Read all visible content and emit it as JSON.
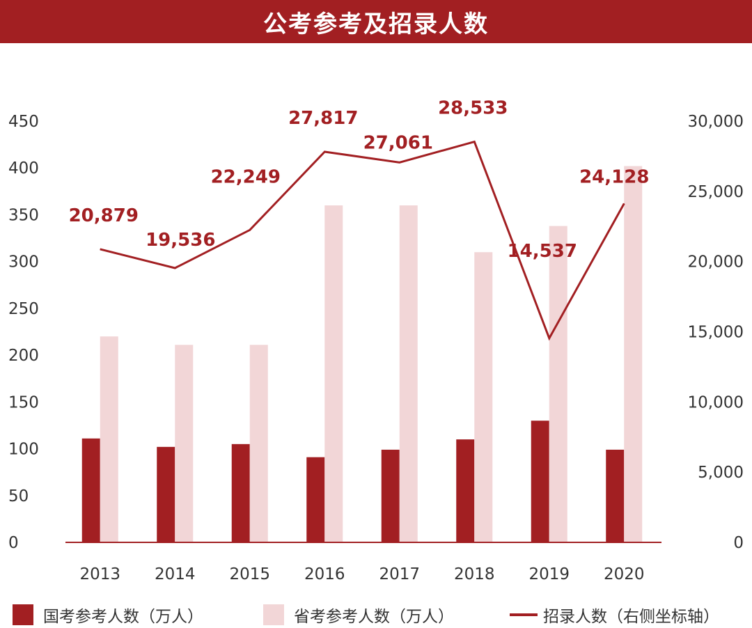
{
  "title": "公考参考及招录人数",
  "colors": {
    "primary": "#a21f22",
    "secondary": "#f2d6d7",
    "axis_text": "#333333"
  },
  "legend": {
    "national_label": "国考参考人数（万人）",
    "provincial_label": "省考参考人数（万人）",
    "recruit_label": "招录人数（右侧坐标轴）"
  },
  "chart_data": {
    "type": "bar",
    "categories": [
      "2013",
      "2014",
      "2015",
      "2016",
      "2017",
      "2018",
      "2019",
      "2020"
    ],
    "series": [
      {
        "name": "国考参考人数（万人）",
        "type": "bar",
        "axis": "left",
        "color": "#a21f22",
        "values": [
          111,
          102,
          105,
          91,
          99,
          110,
          130,
          99
        ]
      },
      {
        "name": "省考参考人数（万人）",
        "type": "bar",
        "axis": "left",
        "color": "#f2d6d7",
        "values": [
          220,
          211,
          211,
          360,
          360,
          310,
          338,
          402
        ]
      },
      {
        "name": "招录人数（右侧坐标轴）",
        "type": "line",
        "axis": "right",
        "color": "#a21f22",
        "values": [
          20879,
          19536,
          22249,
          27817,
          27061,
          28533,
          14537,
          24128
        ],
        "data_labels": [
          "20,879",
          "19,536",
          "22,249",
          "27,817",
          "27,061",
          "28,533",
          "14,537",
          "24,128"
        ]
      }
    ],
    "y_left": {
      "ylim": [
        0,
        450
      ],
      "ticks": [
        "0",
        "50",
        "100",
        "150",
        "200",
        "250",
        "300",
        "350",
        "400",
        "450"
      ]
    },
    "y_right": {
      "ylim": [
        0,
        30000
      ],
      "ticks": [
        "0",
        "5,000",
        "10,000",
        "15,000",
        "20,000",
        "25,000",
        "30,000"
      ]
    },
    "grid": false,
    "legend_position": "bottom"
  }
}
